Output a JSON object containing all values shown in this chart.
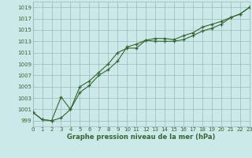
{
  "line1_x": [
    0,
    1,
    2,
    3,
    4,
    5,
    6,
    7,
    8,
    9,
    10,
    11,
    12,
    13,
    14,
    15,
    16,
    17,
    18,
    19,
    20,
    21,
    22,
    23
  ],
  "line1_y": [
    1000.5,
    999.2,
    999.0,
    999.5,
    1001.0,
    1004.0,
    1005.2,
    1007.0,
    1008.0,
    1009.5,
    1012.0,
    1012.5,
    1013.2,
    1013.0,
    1013.0,
    1013.0,
    1013.3,
    1014.0,
    1014.8,
    1015.3,
    1016.0,
    1017.2,
    1017.8,
    1019.0
  ],
  "line2_x": [
    0,
    1,
    2,
    3,
    4,
    5,
    6,
    7,
    8,
    9,
    10,
    11,
    12,
    13,
    14,
    15,
    16,
    17,
    18,
    19,
    20,
    21,
    22,
    23
  ],
  "line2_y": [
    1000.5,
    999.2,
    999.0,
    1003.2,
    1001.0,
    1005.0,
    1006.0,
    1007.5,
    1009.0,
    1011.0,
    1011.8,
    1011.8,
    1013.2,
    1013.5,
    1013.5,
    1013.3,
    1014.0,
    1014.5,
    1015.5,
    1016.0,
    1016.5,
    1017.2,
    1017.8,
    1019.0
  ],
  "ylim": [
    998.0,
    1020.0
  ],
  "yticks": [
    999,
    1001,
    1003,
    1005,
    1007,
    1009,
    1011,
    1013,
    1015,
    1017,
    1019
  ],
  "xticks": [
    0,
    1,
    2,
    3,
    4,
    5,
    6,
    7,
    8,
    9,
    10,
    11,
    12,
    13,
    14,
    15,
    16,
    17,
    18,
    19,
    20,
    21,
    22,
    23
  ],
  "xlim": [
    0,
    23
  ],
  "xlabel": "Graphe pression niveau de la mer (hPa)",
  "line_color": "#336633",
  "marker": "+",
  "bg_color": "#cce8e8",
  "grid_color": "#99bbbb",
  "label_fontsize": 5.0,
  "xlabel_fontsize": 6.0
}
